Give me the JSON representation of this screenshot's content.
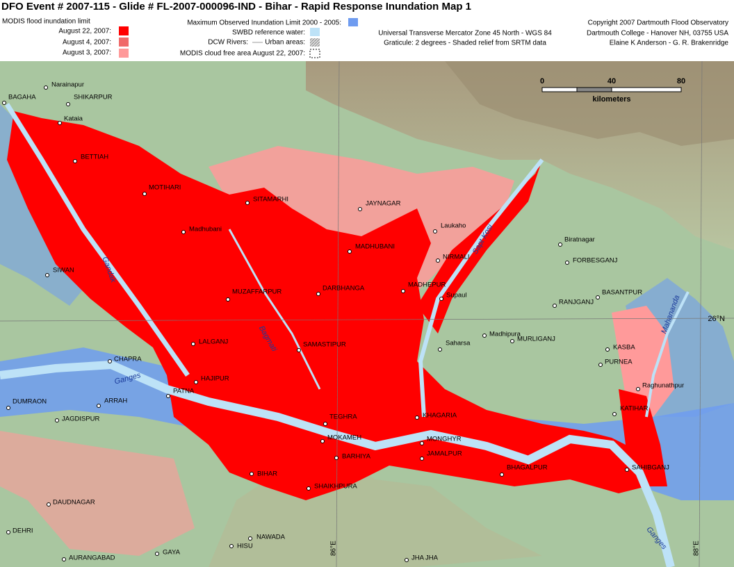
{
  "header": {
    "title": "DFO Event # 2007-115 - Glide # FL-2007-000096-IND - Bihar - Rapid Response Inundation Map 1"
  },
  "legend": {
    "title": "MODIS flood inundation limit",
    "items": [
      "August 22, 2007:",
      "August 4, 2007:",
      "August 3, 2007:"
    ]
  },
  "reference": [
    "Maximum Observed Inundation Limit   2000 - 2005:",
    "SWBD reference water:",
    "DCW Rivers:",
    "Urban areas:",
    "MODIS cloud free area August 22, 2007:"
  ],
  "projection": [
    "Universal Transverse Mercator Zone 45 North - WGS 84",
    "Graticule:  2 degrees - Shaded relief from SRTM data"
  ],
  "credits": [
    "Copyright 2007 Dartmouth Flood Observatory",
    "Dartmouth College - Hanover NH, 03755  USA",
    "Elaine K Anderson - G. R. Brakenridge"
  ],
  "scale": {
    "labels": [
      "0",
      "40",
      "80"
    ],
    "unit": "kilometers"
  },
  "graticule": [
    "26°N",
    "86°E",
    "88°E"
  ],
  "rivers": [
    "Gandak",
    "Bagmati",
    "Ganges",
    "Sapt Kosi",
    "Mahananda",
    "Ganges"
  ],
  "places": [
    "Narainapur",
    "BAGAHA",
    "SHIKARPUR",
    "Kataia",
    "BETTIAH",
    "MOTIHARI",
    "SITAMARHI",
    "JAYNAGAR",
    "Laukaho",
    "Biratnagar",
    "Madhubani",
    "MADHUBANI",
    "NIRMALI",
    "FORBESGANJ",
    "SIWAN",
    "MUZAFFARPUR",
    "DARBHANGA",
    "MADHEPUR",
    "Supaul",
    "BASANTPUR",
    "RANJGANJ",
    "LALGANJ",
    "SAMASTIPUR",
    "Saharsa",
    "Madhipura",
    "MURLIGANJ",
    "KASBA",
    "PURNEA",
    "CHAPRA",
    "HAJIPUR",
    "PATNA",
    "Raghunathpur",
    "DUMRAON",
    "ARRAH",
    "KATIHAR",
    "JAGDISPUR",
    "TEGHRA",
    "KHAGARIA",
    "MOKAMEH",
    "MONGHYR",
    "JAMALPUR",
    "BARHIYA",
    "BHAGALPUR",
    "SAHIBGANJ",
    "BIHAR",
    "SHAIKHPURA",
    "DAUDNAGAR",
    "DEHRI",
    "NAWADA",
    "HISU",
    "GAYA",
    "AURANGABAD",
    "JHA JHA"
  ]
}
